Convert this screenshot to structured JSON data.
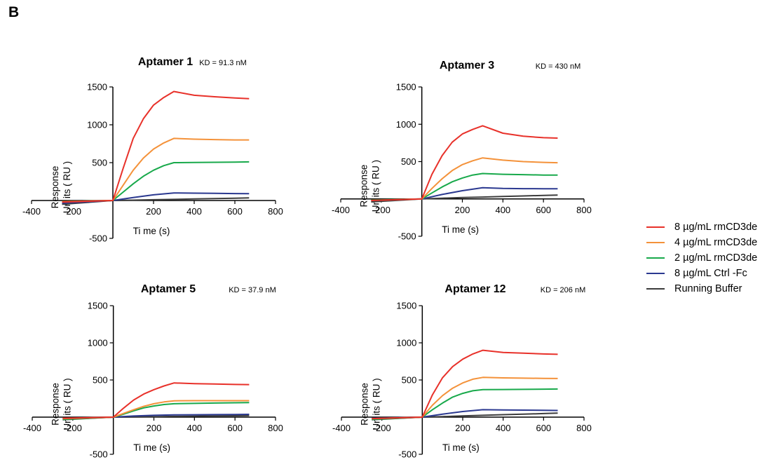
{
  "figure_label": "B",
  "legend": {
    "items": [
      {
        "label": "8 µg/mL rmCD3de",
        "color": "#e8312a"
      },
      {
        "label": "4 µg/mL rmCD3de",
        "color": "#f4923a"
      },
      {
        "label": "2 µg/mL rmCD3de",
        "color": "#18a94b"
      },
      {
        "label": "8 µg/mL Ctrl -Fc",
        "color": "#2b3990"
      },
      {
        "label": "Running Buffer",
        "color": "#3c3c3c"
      }
    ]
  },
  "chart_data": [
    {
      "type": "line",
      "title": "Aptamer 1",
      "annotation": "KD = 91.3 nM",
      "xlabel": "Ti me  (s)",
      "ylabel_lines": [
        "Response",
        "Un its ( RU )"
      ],
      "xlim": [
        -400,
        800
      ],
      "ylim": [
        -500,
        1500
      ],
      "xticks": [
        -400,
        -200,
        200,
        400,
        600,
        800
      ],
      "yticks": [
        -500,
        500,
        1000,
        1500
      ],
      "series": [
        {
          "label": "8 µg/mL rmCD3de",
          "x": [
            -250,
            0,
            50,
            100,
            150,
            200,
            250,
            300,
            400,
            500,
            600,
            670
          ],
          "y": [
            -20,
            0,
            420,
            820,
            1080,
            1260,
            1360,
            1440,
            1390,
            1370,
            1355,
            1345
          ]
        },
        {
          "label": "4 µg/mL rmCD3de",
          "x": [
            -250,
            0,
            50,
            100,
            150,
            200,
            250,
            300,
            400,
            500,
            600,
            670
          ],
          "y": [
            -15,
            0,
            200,
            400,
            560,
            680,
            760,
            820,
            810,
            805,
            800,
            800
          ]
        },
        {
          "label": "2 µg/mL rmCD3de",
          "x": [
            -250,
            0,
            50,
            100,
            150,
            200,
            250,
            300,
            400,
            500,
            600,
            670
          ],
          "y": [
            -15,
            0,
            110,
            220,
            320,
            400,
            460,
            500,
            502,
            505,
            507,
            510
          ]
        },
        {
          "label": "8 µg/mL Ctrl -Fc",
          "x": [
            -250,
            0,
            100,
            200,
            300,
            400,
            500,
            600,
            670
          ],
          "y": [
            -35,
            0,
            40,
            75,
            100,
            97,
            94,
            92,
            90
          ]
        },
        {
          "label": "Running Buffer",
          "x": [
            -250,
            0,
            100,
            200,
            300,
            400,
            500,
            600,
            670
          ],
          "y": [
            -50,
            0,
            5,
            10,
            15,
            20,
            25,
            30,
            35
          ]
        }
      ]
    },
    {
      "type": "line",
      "title": "Aptamer 3",
      "annotation": "KD = 430 nM",
      "xlabel": "Ti me  (s)",
      "ylabel_lines": [
        "Response",
        "Un its ( RU )"
      ],
      "xlim": [
        -400,
        800
      ],
      "ylim": [
        -500,
        1500
      ],
      "xticks": [
        -400,
        -200,
        200,
        400,
        600,
        800
      ],
      "yticks": [
        -500,
        500,
        1000,
        1500
      ],
      "series": [
        {
          "label": "8 µg/mL rmCD3de",
          "x": [
            -250,
            0,
            50,
            100,
            150,
            200,
            250,
            300,
            400,
            500,
            600,
            670
          ],
          "y": [
            -20,
            0,
            330,
            580,
            760,
            870,
            930,
            980,
            880,
            840,
            820,
            815
          ]
        },
        {
          "label": "4 µg/mL rmCD3de",
          "x": [
            -250,
            0,
            50,
            100,
            150,
            200,
            250,
            300,
            400,
            500,
            600,
            670
          ],
          "y": [
            -20,
            0,
            140,
            270,
            380,
            460,
            510,
            550,
            520,
            500,
            490,
            485
          ]
        },
        {
          "label": "2 µg/mL rmCD3de",
          "x": [
            -250,
            0,
            50,
            100,
            150,
            200,
            250,
            300,
            400,
            500,
            600,
            670
          ],
          "y": [
            -15,
            0,
            80,
            160,
            230,
            280,
            320,
            340,
            330,
            325,
            320,
            320
          ]
        },
        {
          "label": "8 µg/mL Ctrl -Fc",
          "x": [
            -250,
            0,
            100,
            200,
            300,
            400,
            500,
            600,
            670
          ],
          "y": [
            -20,
            0,
            60,
            110,
            150,
            140,
            138,
            137,
            136
          ]
        },
        {
          "label": "Running Buffer",
          "x": [
            -250,
            0,
            100,
            200,
            300,
            400,
            500,
            600,
            670
          ],
          "y": [
            -40,
            0,
            10,
            18,
            25,
            33,
            40,
            47,
            52
          ]
        }
      ]
    },
    {
      "type": "line",
      "title": "Aptamer 5",
      "annotation": "KD = 37.9 nM",
      "xlabel": "Ti me  (s)",
      "ylabel_lines": [
        "Response",
        "Un its ( RU )"
      ],
      "xlim": [
        -400,
        800
      ],
      "ylim": [
        -500,
        1500
      ],
      "xticks": [
        -400,
        -200,
        200,
        400,
        600,
        800
      ],
      "yticks": [
        -500,
        500,
        1000,
        1500
      ],
      "series": [
        {
          "label": "8 µg/mL rmCD3de",
          "x": [
            -250,
            0,
            50,
            100,
            150,
            200,
            250,
            300,
            400,
            500,
            600,
            670
          ],
          "y": [
            -15,
            0,
            120,
            230,
            310,
            370,
            420,
            460,
            450,
            445,
            440,
            438
          ]
        },
        {
          "label": "4 µg/mL rmCD3de",
          "x": [
            -250,
            0,
            50,
            100,
            150,
            200,
            250,
            300,
            400,
            500,
            600,
            670
          ],
          "y": [
            -20,
            0,
            50,
            100,
            145,
            180,
            205,
            220,
            222,
            222,
            222,
            222
          ]
        },
        {
          "label": "2 µg/mL rmCD3de",
          "x": [
            -250,
            0,
            50,
            100,
            150,
            200,
            250,
            300,
            400,
            500,
            600,
            670
          ],
          "y": [
            -30,
            0,
            40,
            85,
            125,
            150,
            170,
            180,
            185,
            190,
            193,
            195
          ]
        },
        {
          "label": "8 µg/mL Ctrl -Fc",
          "x": [
            -250,
            0,
            100,
            200,
            300,
            400,
            500,
            600,
            670
          ],
          "y": [
            -20,
            0,
            15,
            25,
            30,
            32,
            34,
            36,
            38
          ]
        },
        {
          "label": "Running Buffer",
          "x": [
            -250,
            0,
            100,
            200,
            300,
            400,
            500,
            600,
            670
          ],
          "y": [
            -35,
            0,
            3,
            6,
            10,
            13,
            16,
            19,
            22
          ]
        }
      ]
    },
    {
      "type": "line",
      "title": "Aptamer 12",
      "annotation": "KD = 206 nM",
      "xlabel": "Ti me  (s)",
      "ylabel_lines": [
        "Response",
        "Un its ( RU )"
      ],
      "xlim": [
        -400,
        800
      ],
      "ylim": [
        -500,
        1500
      ],
      "xticks": [
        -400,
        -200,
        200,
        400,
        600,
        800
      ],
      "yticks": [
        -500,
        500,
        1000,
        1500
      ],
      "series": [
        {
          "label": "8 µg/mL rmCD3de",
          "x": [
            -250,
            0,
            50,
            100,
            150,
            200,
            250,
            300,
            400,
            500,
            600,
            670
          ],
          "y": [
            -20,
            0,
            300,
            530,
            680,
            780,
            850,
            900,
            870,
            860,
            850,
            845
          ]
        },
        {
          "label": "4 µg/mL rmCD3de",
          "x": [
            -250,
            0,
            50,
            100,
            150,
            200,
            250,
            300,
            400,
            500,
            600,
            670
          ],
          "y": [
            -20,
            0,
            160,
            290,
            390,
            460,
            510,
            535,
            528,
            525,
            522,
            520
          ]
        },
        {
          "label": "2 µg/mL rmCD3de",
          "x": [
            -250,
            0,
            50,
            100,
            150,
            200,
            250,
            300,
            400,
            500,
            600,
            670
          ],
          "y": [
            -30,
            0,
            100,
            190,
            270,
            320,
            355,
            370,
            372,
            374,
            376,
            378
          ]
        },
        {
          "label": "8 µg/mL Ctrl -Fc",
          "x": [
            -250,
            0,
            100,
            200,
            300,
            400,
            500,
            600,
            670
          ],
          "y": [
            -15,
            0,
            40,
            75,
            100,
            97,
            94,
            92,
            90
          ]
        },
        {
          "label": "Running Buffer",
          "x": [
            -250,
            0,
            100,
            200,
            300,
            400,
            500,
            600,
            670
          ],
          "y": [
            -35,
            0,
            8,
            16,
            25,
            33,
            40,
            48,
            55
          ]
        }
      ]
    }
  ]
}
